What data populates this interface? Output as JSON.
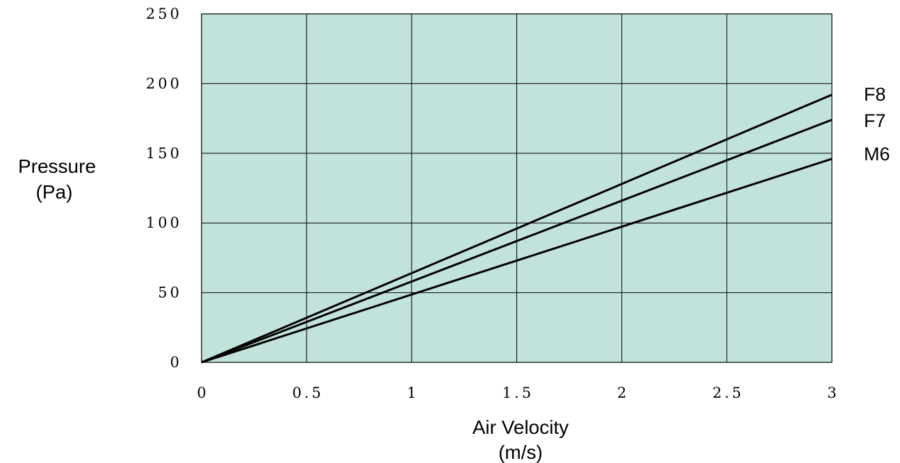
{
  "chart_data": {
    "type": "line",
    "xlabel_line1": "Air Velocity",
    "xlabel_line2": "(m/s)",
    "ylabel_line1": "Pressure",
    "ylabel_line2": "(Pa)",
    "xlim": [
      0,
      3
    ],
    "ylim": [
      0,
      250
    ],
    "x_ticks": [
      0,
      0.5,
      1,
      1.5,
      2,
      2.5,
      3
    ],
    "x_tick_labels": [
      "0",
      "0.5",
      "1",
      "1.5",
      "2",
      "2.5",
      "3"
    ],
    "y_ticks": [
      0,
      50,
      100,
      150,
      200,
      250
    ],
    "y_tick_labels": [
      "0",
      "50",
      "100",
      "150",
      "200",
      "250"
    ],
    "grid": true,
    "plot_background": "#c2e2dc",
    "line_color": "#000000",
    "series": [
      {
        "name": "F8",
        "x": [
          0,
          3
        ],
        "y": [
          0,
          192
        ]
      },
      {
        "name": "F7",
        "x": [
          0,
          3
        ],
        "y": [
          0,
          174
        ]
      },
      {
        "name": "M6",
        "x": [
          0,
          3
        ],
        "y": [
          0,
          146
        ]
      }
    ]
  }
}
